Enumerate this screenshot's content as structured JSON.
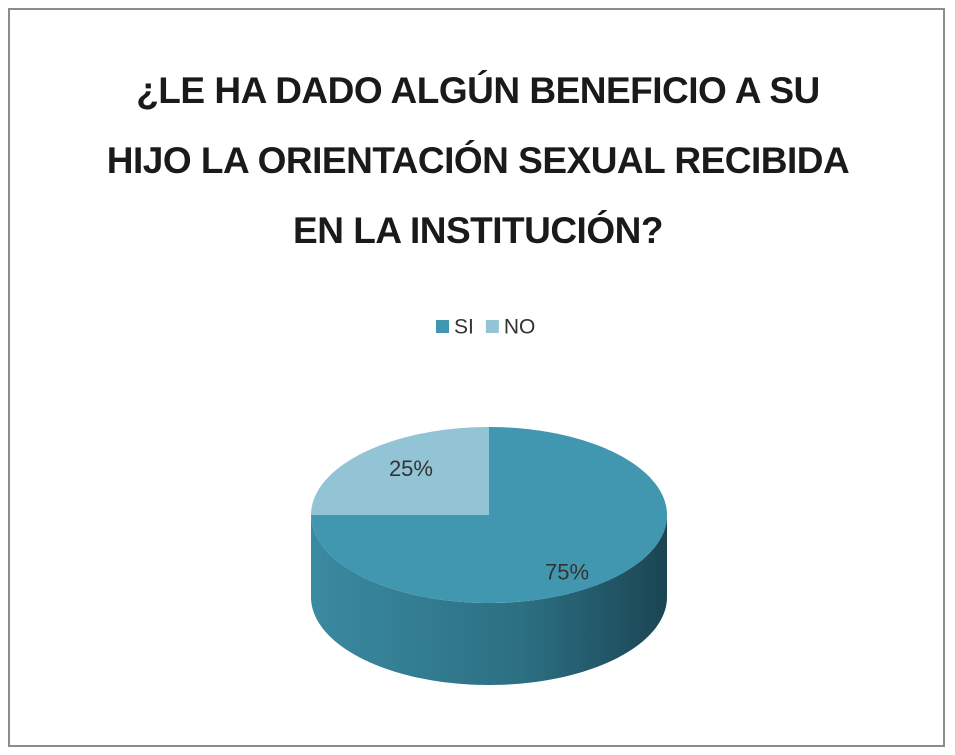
{
  "chart_data": {
    "type": "pie",
    "title": "¿LE HA DADO ALGÚN BENEFICIO A SU HIJO LA ORIENTACIÓN SEXUAL RECIBIDA EN LA INSTITUCIÓN?",
    "categories": [
      "SI",
      "NO"
    ],
    "values": [
      75,
      25
    ],
    "value_labels": [
      "75%",
      "25%"
    ],
    "colors": [
      "#4197b0",
      "#93c4d5"
    ],
    "legend": "top"
  }
}
